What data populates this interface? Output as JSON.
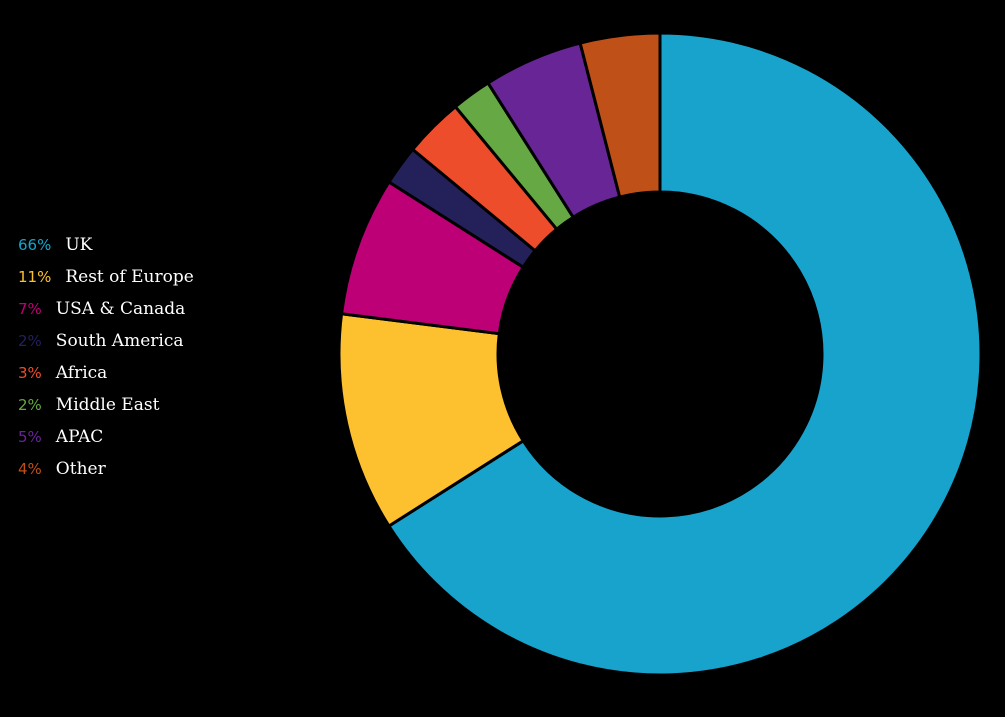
{
  "chart_data": {
    "type": "pie",
    "variant": "donut",
    "legend_position": "left",
    "start_angle_deg": 0,
    "direction": "clockwise",
    "slices": [
      {
        "label": "UK",
        "percent_label": "66%",
        "value": 66,
        "color": "#18a3cc"
      },
      {
        "label": "Rest of Europe",
        "percent_label": "11%",
        "value": 11,
        "color": "#fdc02f"
      },
      {
        "label": "USA & Canada",
        "percent_label": "7%",
        "value": 7,
        "color": "#bd0076"
      },
      {
        "label": "South America",
        "percent_label": "2%",
        "value": 2,
        "color": "#23205a"
      },
      {
        "label": "Africa",
        "percent_label": "3%",
        "value": 3,
        "color": "#ed4d2b"
      },
      {
        "label": "Middle East",
        "percent_label": "2%",
        "value": 2,
        "color": "#65a844"
      },
      {
        "label": "APAC",
        "percent_label": "5%",
        "value": 5,
        "color": "#672596"
      },
      {
        "label": "Other",
        "percent_label": "4%",
        "value": 4,
        "color": "#bf5018"
      }
    ]
  }
}
